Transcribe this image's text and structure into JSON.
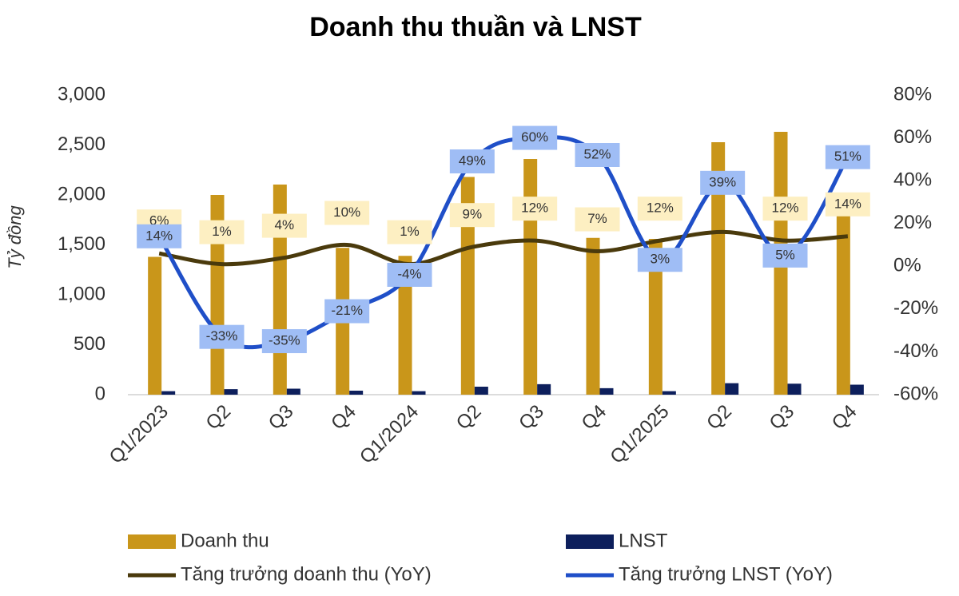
{
  "chart_data": {
    "type": "bar-line",
    "title": "Doanh thu thuần và LNST",
    "y_label": "Tỷ đồng",
    "categories": [
      "Q1/2023",
      "Q2",
      "Q3",
      "Q4",
      "Q1/2024",
      "Q2",
      "Q3",
      "Q4",
      "Q1/2025",
      "Q2",
      "Q3",
      "Q4"
    ],
    "ylim": [
      0,
      3000
    ],
    "yticks": [
      0,
      500,
      {
        "value": 1000,
        "label": "1,000"
      },
      {
        "value": 1500,
        "label": "1,500"
      },
      {
        "value": 2000,
        "label": "2,000"
      },
      {
        "value": 2500,
        "label": "2,500"
      },
      {
        "value": 3000,
        "label": "3,000"
      }
    ],
    "y2lim": [
      -60,
      80
    ],
    "y2ticks": [
      {
        "value": -60,
        "label": "-60%"
      },
      {
        "value": -40,
        "label": "-40%"
      },
      {
        "value": -20,
        "label": "-20%"
      },
      {
        "value": 0,
        "label": "0%"
      },
      {
        "value": 20,
        "label": "20%"
      },
      {
        "value": 40,
        "label": "40%"
      },
      {
        "value": 60,
        "label": "60%"
      },
      {
        "value": 80,
        "label": "80%"
      }
    ],
    "series": [
      {
        "name": "Doanh thu",
        "type": "bar",
        "color": "#c9961a",
        "values": [
          1380,
          2000,
          2104,
          1470,
          1390,
          2180,
          2360,
          1570,
          1560,
          2528,
          2632,
          1790
        ]
      },
      {
        "name": "LNST",
        "type": "bar",
        "color": "#0d1f5c",
        "values": [
          35,
          55,
          60,
          40,
          35,
          80,
          105,
          65,
          35,
          115,
          110,
          100
        ]
      },
      {
        "name": "Tăng trưởng doanh thu (YoY)",
        "type": "line",
        "axis": "y2",
        "color": "#4a3a0c",
        "label_color": "#fdefc2",
        "values": [
          6,
          1,
          4,
          10,
          1,
          9,
          12,
          7,
          12,
          16,
          12,
          14
        ],
        "value_labels": [
          "6%",
          "1%",
          "4%",
          "10%",
          "1%",
          "9%",
          "12%",
          "7%",
          "12%",
          null,
          "12%",
          "14%"
        ]
      },
      {
        "name": "Tăng trưởng LNST (YoY)",
        "type": "line",
        "axis": "y2",
        "color": "#1f4fc8",
        "label_color": "#9fbdf5",
        "values": [
          14,
          -33,
          -35,
          -21,
          -4,
          49,
          60,
          52,
          3,
          39,
          5,
          51
        ],
        "value_labels": [
          "14%",
          "-33%",
          "-35%",
          "-21%",
          "-4%",
          "49%",
          "60%",
          "52%",
          "3%",
          "39%",
          "5%",
          "51%"
        ]
      }
    ]
  }
}
